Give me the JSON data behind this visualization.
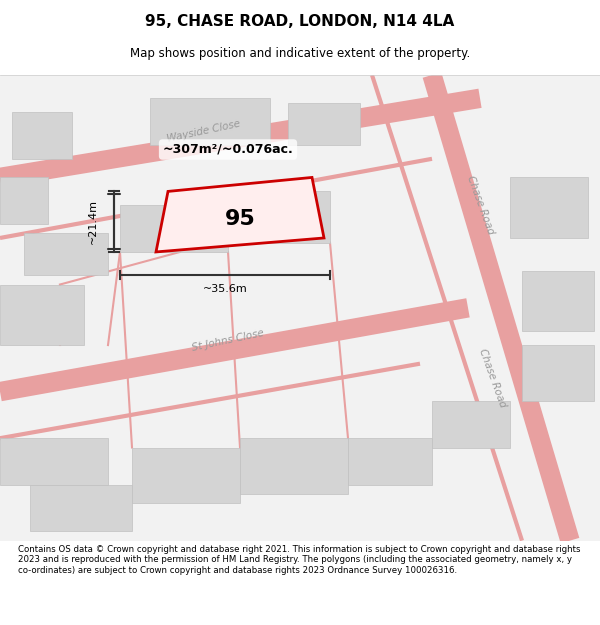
{
  "title_line1": "95, CHASE ROAD, LONDON, N14 4LA",
  "title_line2": "Map shows position and indicative extent of the property.",
  "footer_text": "Contains OS data © Crown copyright and database right 2021. This information is subject to Crown copyright and database rights 2023 and is reproduced with the permission of HM Land Registry. The polygons (including the associated geometry, namely x, y co-ordinates) are subject to Crown copyright and database rights 2023 Ordnance Survey 100026316.",
  "bg_color": "#f5f5f5",
  "map_bg": "#f0f0f0",
  "road_color": "#f0a0a0",
  "building_color": "#d8d8d8",
  "building_edge": "#cccccc",
  "property_color_fill": "rgba(255,200,200,0.3)",
  "property_edge": "#dd0000",
  "dimension_color": "#333333",
  "text_color": "#555555",
  "road_label_color": "#888888",
  "area_text": "~307m²/~0.076ac.",
  "number_text": "95",
  "dim_h": "~21.4m",
  "dim_w": "~35.6m",
  "street_labels": [
    "Wayside Close",
    "Chase Road",
    "St Johns Close",
    "Chase Road"
  ]
}
